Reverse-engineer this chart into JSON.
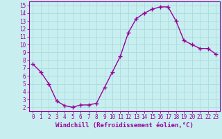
{
  "x": [
    0,
    1,
    2,
    3,
    4,
    5,
    6,
    7,
    8,
    9,
    10,
    11,
    12,
    13,
    14,
    15,
    16,
    17,
    18,
    19,
    20,
    21,
    22,
    23
  ],
  "y": [
    7.5,
    6.5,
    5.0,
    2.8,
    2.2,
    2.0,
    2.3,
    2.3,
    2.5,
    4.5,
    6.5,
    8.5,
    11.5,
    13.3,
    14.0,
    14.5,
    14.8,
    14.8,
    13.0,
    10.5,
    10.0,
    9.5,
    9.5,
    8.8
  ],
  "line_color": "#990099",
  "marker": "+",
  "marker_size": 4,
  "bg_color": "#c8eef0",
  "grid_color": "#aadddd",
  "xlabel": "Windchill (Refroidissement éolien,°C)",
  "xlim": [
    -0.5,
    23.5
  ],
  "ylim": [
    1.5,
    15.5
  ],
  "yticks": [
    2,
    3,
    4,
    5,
    6,
    7,
    8,
    9,
    10,
    11,
    12,
    13,
    14,
    15
  ],
  "xticks": [
    0,
    1,
    2,
    3,
    4,
    5,
    6,
    7,
    8,
    9,
    10,
    11,
    12,
    13,
    14,
    15,
    16,
    17,
    18,
    19,
    20,
    21,
    22,
    23
  ],
  "tick_color": "#990099",
  "axis_color": "#990099",
  "xlabel_fontsize": 6.5,
  "tick_fontsize": 5.5,
  "line_width": 1.0,
  "marker_color": "#990099"
}
